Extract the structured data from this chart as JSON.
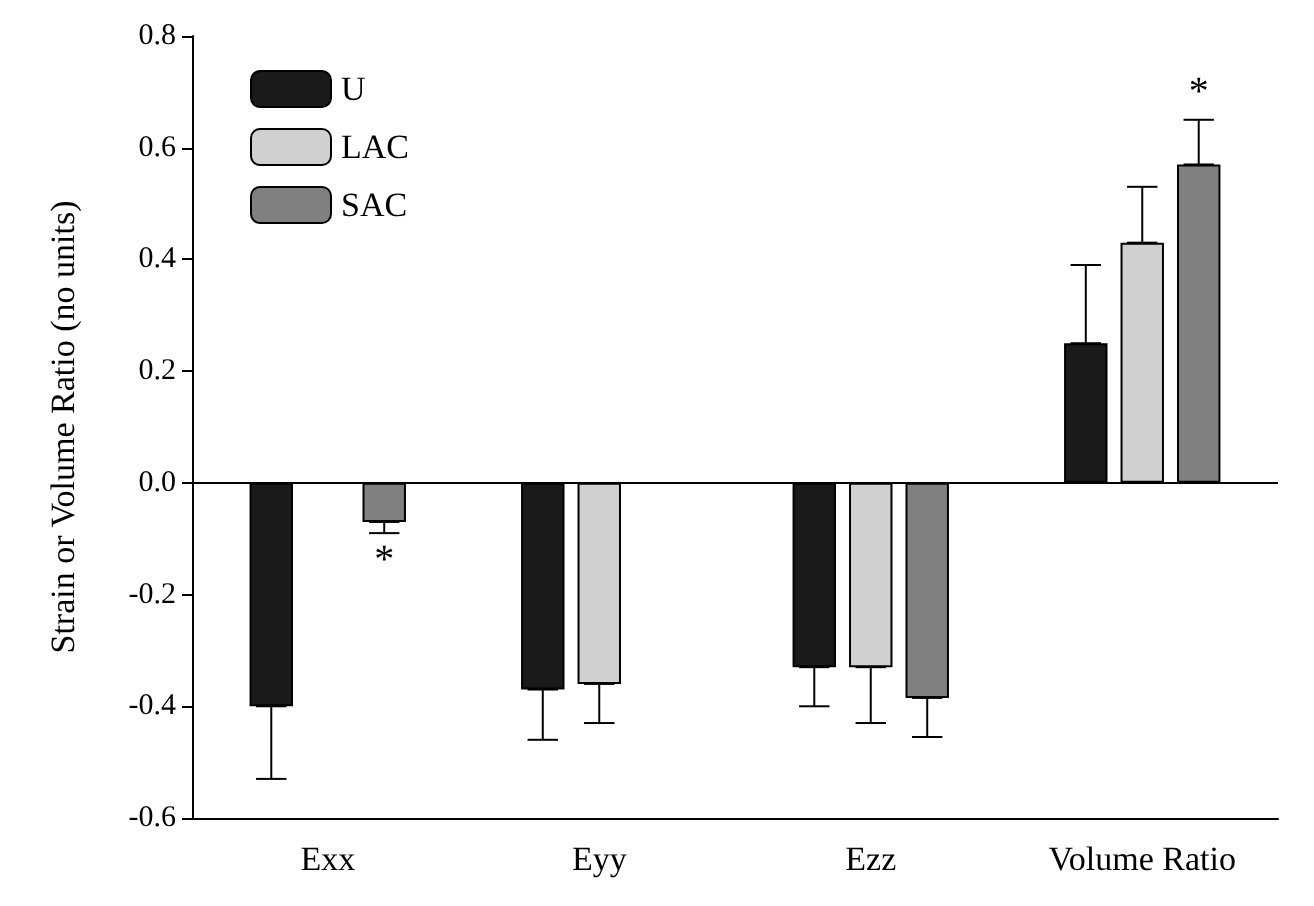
{
  "chart_data": {
    "type": "bar",
    "ylabel": "Strain or Volume Ratio (no units)",
    "categories": [
      "Exx",
      "Eyy",
      "Ezz",
      "Volume Ratio"
    ],
    "series": [
      {
        "name": "U",
        "color": "#1a1a1a",
        "values": [
          -0.4,
          -0.37,
          -0.33,
          0.25
        ],
        "errors": [
          [
            -0.53,
            -0.4
          ],
          [
            -0.46,
            -0.37
          ],
          [
            -0.4,
            -0.33
          ],
          [
            0.25,
            0.39
          ]
        ]
      },
      {
        "name": "LAC",
        "color": "#d0d0d0",
        "values": [
          null,
          -0.36,
          -0.33,
          0.43
        ],
        "errors": [
          null,
          [
            -0.43,
            -0.36
          ],
          [
            -0.43,
            -0.33
          ],
          [
            0.43,
            0.53
          ]
        ]
      },
      {
        "name": "SAC",
        "color": "#808080",
        "values": [
          -0.07,
          null,
          -0.385,
          0.57
        ],
        "errors": [
          [
            -0.09,
            -0.07
          ],
          null,
          [
            -0.455,
            -0.385
          ],
          [
            0.57,
            0.65
          ]
        ]
      }
    ],
    "annotations": [
      "*",
      "*"
    ],
    "ref_lines": [
      {
        "axis": "y",
        "value": 0,
        "color": "#000000"
      }
    ],
    "ylim": [
      -0.6,
      0.8
    ],
    "yticks": [
      {
        "value": -0.6,
        "label": "-0.6"
      },
      {
        "value": -0.4,
        "label": "-0.4"
      },
      {
        "value": -0.2,
        "label": "-0.2"
      },
      {
        "value": 0,
        "label": "0.0"
      },
      {
        "value": 0.2,
        "label": "0.2"
      },
      {
        "value": 0.4,
        "label": "0.4"
      },
      {
        "value": 0.6,
        "label": "0.6"
      },
      {
        "value": 0.8,
        "label": "0.8"
      }
    ],
    "grid": false,
    "legend": "top left"
  }
}
